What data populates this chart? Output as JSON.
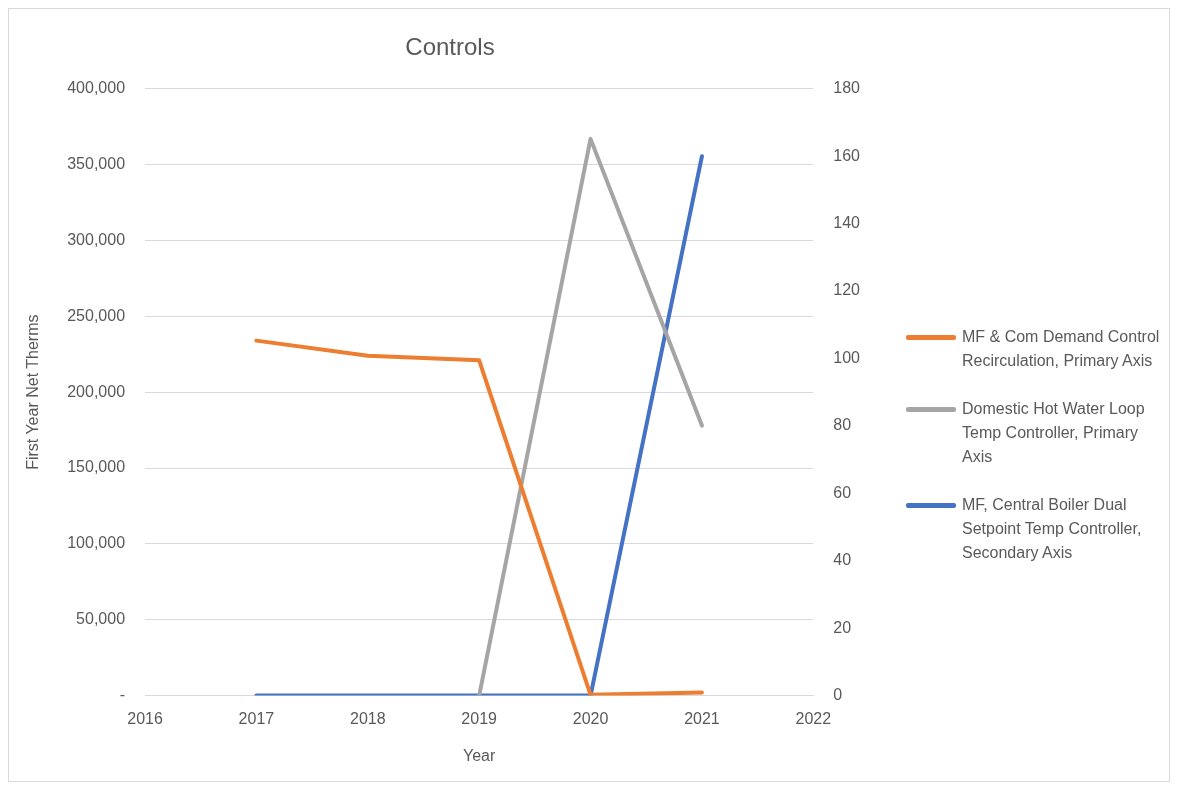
{
  "chart_data": {
    "type": "line",
    "title": "Controls",
    "xlabel": "Year",
    "ylabel": "First Year Net Therms",
    "x": [
      2017,
      2018,
      2019,
      2020,
      2021
    ],
    "series": [
      {
        "name": "MF & Com Demand Control Recirculation, Primary Axis",
        "color": "#ed7d31",
        "values": [
          234000,
          224000,
          221000,
          500,
          2000
        ]
      },
      {
        "name": "Domestic Hot Water Loop Temp Controller, Primary Axis",
        "color": "#a5a5a5",
        "values": [
          null,
          null,
          0,
          367000,
          178000
        ]
      },
      {
        "name": "MF, Central Boiler Dual Setpoint Temp Controller, Secondary Axis",
        "color": "#4472c4",
        "values": [
          0,
          0,
          0,
          0,
          160
        ],
        "axis": "y2"
      }
    ],
    "xlim": [
      2016,
      2022
    ],
    "xticks": [
      2016,
      2017,
      2018,
      2019,
      2020,
      2021,
      2022
    ],
    "ylim": [
      0,
      400000
    ],
    "yticks": [
      {
        "value": 0,
        "label": "-"
      },
      {
        "value": 50000,
        "label": "50,000"
      },
      {
        "value": 100000,
        "label": "100,000"
      },
      {
        "value": 150000,
        "label": "150,000"
      },
      {
        "value": 200000,
        "label": "200,000"
      },
      {
        "value": 250000,
        "label": "250,000"
      },
      {
        "value": 300000,
        "label": "300,000"
      },
      {
        "value": 350000,
        "label": "350,000"
      },
      {
        "value": 400000,
        "label": "400,000"
      }
    ],
    "y2lim": [
      0,
      180
    ],
    "y2ticks": [
      0,
      20,
      40,
      60,
      80,
      100,
      120,
      140,
      160,
      180
    ],
    "grid": "y",
    "legend": "right",
    "marker": "none",
    "line_style": "solid"
  }
}
